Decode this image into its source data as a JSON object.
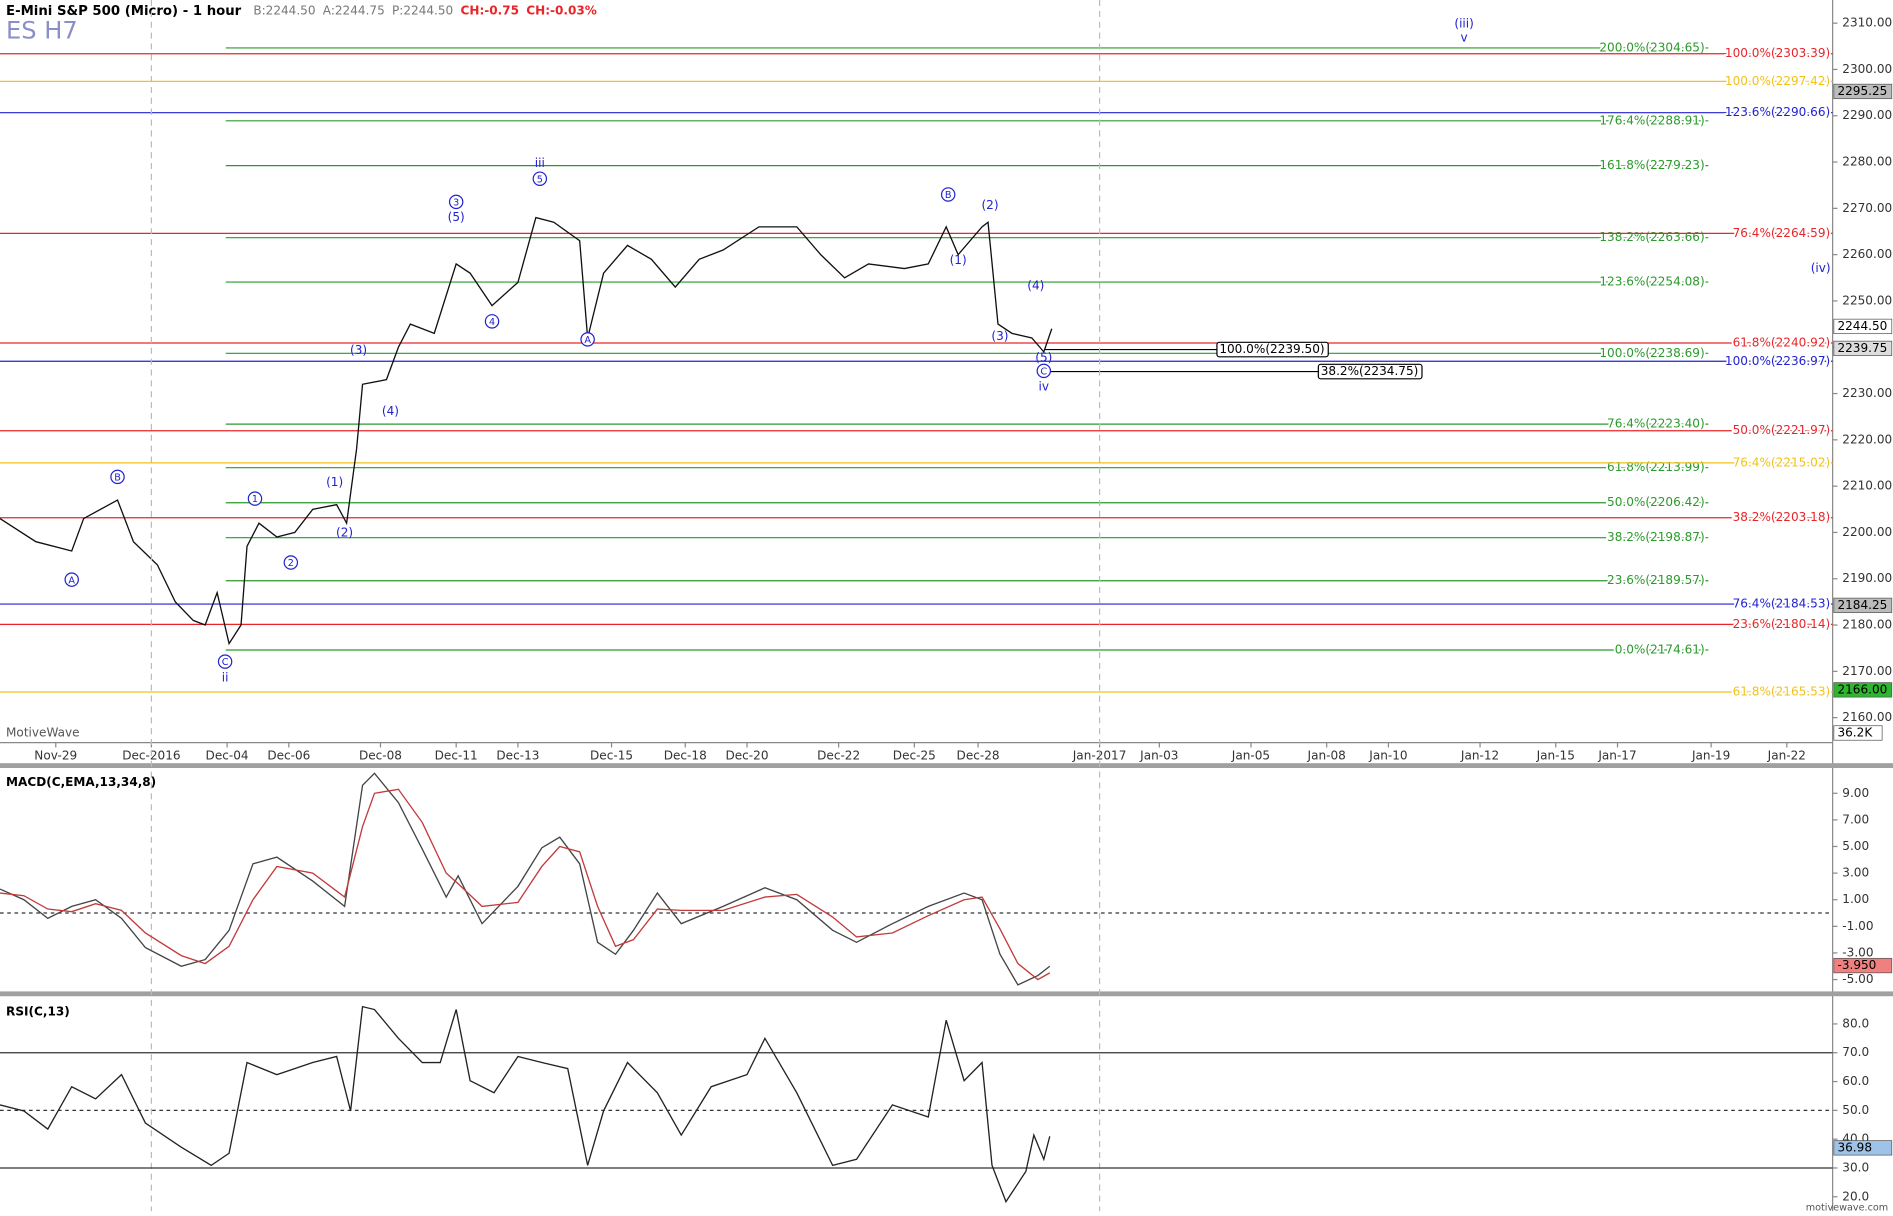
{
  "brand": "MotiveWave",
  "site": "motivewave.com",
  "chart_data": [
    {
      "type": "line",
      "title": "E-Mini S&P 500 (Micro) - 1 hour",
      "watermark": "ES H7",
      "quote": [
        {
          "text": "B:2244.50",
          "color": "#777777"
        },
        {
          "text": "A:2244.75",
          "color": "#777777"
        },
        {
          "text": "P:2244.50",
          "color": "#777777"
        },
        {
          "text": "CH:-0.75",
          "color": "#e8262a"
        },
        {
          "text": "CH:-0.03%",
          "color": "#e8262a"
        }
      ],
      "xlim": [
        0,
        920
      ],
      "ylim": [
        2154.6,
        2315.0
      ],
      "xticks": [
        {
          "value": 28,
          "label": "Nov-29"
        },
        {
          "value": 76,
          "label": "Dec-2016"
        },
        {
          "value": 114,
          "label": "Dec-04"
        },
        {
          "value": 145,
          "label": "Dec-06"
        },
        {
          "value": 191,
          "label": "Dec-08"
        },
        {
          "value": 229,
          "label": "Dec-11"
        },
        {
          "value": 260,
          "label": "Dec-13"
        },
        {
          "value": 307,
          "label": "Dec-15"
        },
        {
          "value": 344,
          "label": "Dec-18"
        },
        {
          "value": 375,
          "label": "Dec-20"
        },
        {
          "value": 421,
          "label": "Dec-22"
        },
        {
          "value": 459,
          "label": "Dec-25"
        },
        {
          "value": 491,
          "label": "Dec-28"
        },
        {
          "value": 552,
          "label": "Jan-2017"
        },
        {
          "value": 582,
          "label": "Jan-03"
        },
        {
          "value": 628,
          "label": "Jan-05"
        },
        {
          "value": 666,
          "label": "Jan-08"
        },
        {
          "value": 697,
          "label": "Jan-10"
        },
        {
          "value": 743,
          "label": "Jan-12"
        },
        {
          "value": 781,
          "label": "Jan-15"
        },
        {
          "value": 812,
          "label": "Jan-17"
        },
        {
          "value": 859,
          "label": "Jan-19"
        },
        {
          "value": 897,
          "label": "Jan-22"
        }
      ],
      "yticks": [
        {
          "value": 2160,
          "label": "2160.00"
        },
        {
          "value": 2170,
          "label": "2170.00"
        },
        {
          "value": 2180,
          "label": "2180.00"
        },
        {
          "value": 2190,
          "label": "2190.00"
        },
        {
          "value": 2200,
          "label": "2200.00"
        },
        {
          "value": 2210,
          "label": "2210.00"
        },
        {
          "value": 2220,
          "label": "2220.00"
        },
        {
          "value": 2230,
          "label": "2230.00"
        },
        {
          "value": 2240,
          "label": "2240.00"
        },
        {
          "value": 2250,
          "label": "2250.00"
        },
        {
          "value": 2260,
          "label": "2260.00"
        },
        {
          "value": 2270,
          "label": "2270.00"
        },
        {
          "value": 2280,
          "label": "2280.00"
        },
        {
          "value": 2290,
          "label": "2290.00"
        },
        {
          "value": 2300,
          "label": "2300.00"
        },
        {
          "value": 2310,
          "label": "2310.00"
        }
      ],
      "x": [
        0,
        18,
        36,
        42,
        59,
        67,
        79,
        88,
        97,
        103,
        109,
        115,
        121,
        124,
        130,
        139,
        148,
        157,
        169,
        174,
        179,
        182,
        194,
        200,
        206,
        218,
        229,
        236,
        247,
        260,
        269,
        278,
        291,
        295,
        303,
        315,
        327,
        339,
        351,
        363,
        381,
        400,
        412,
        424,
        436,
        454,
        466,
        475,
        481,
        493,
        496,
        501,
        508,
        518,
        524,
        528
      ],
      "series": [
        {
          "color": "#111111",
          "values": [
            2203,
            2198,
            2196,
            2203,
            2207,
            2198,
            2193,
            2185,
            2181,
            2180,
            2187,
            2176,
            2180,
            2197,
            2202,
            2199,
            2200,
            2205,
            2206,
            2202,
            2218,
            2232,
            2233,
            2240,
            2245,
            2243,
            2258,
            2256,
            2249,
            2254,
            2268,
            2267,
            2263,
            2242,
            2256,
            2262,
            2259,
            2253,
            2259,
            2261,
            2266,
            2266,
            2260,
            2255,
            2258,
            2257,
            2258,
            2266,
            2260,
            2266,
            2267,
            2245,
            2243,
            2242,
            2239,
            2244
          ]
        }
      ],
      "levels": [
        {
          "value": 2304.65,
          "label": "200.0%(2304.65)",
          "color": "#2b9a2b"
        },
        {
          "value": 2288.91,
          "label": "176.4%(2288.91)",
          "color": "#2b9a2b"
        },
        {
          "value": 2279.23,
          "label": "161.8%(2279.23)",
          "color": "#2b9a2b"
        },
        {
          "value": 2263.66,
          "label": "138.2%(2263.66)",
          "color": "#2b9a2b"
        },
        {
          "value": 2254.08,
          "label": "123.6%(2254.08)",
          "color": "#2b9a2b"
        },
        {
          "value": 2238.69,
          "label": "100.0%(2238.69)",
          "color": "#2b9a2b"
        },
        {
          "value": 2223.4,
          "label": "76.4%(2223.40)",
          "color": "#2b9a2b"
        },
        {
          "value": 2213.99,
          "label": "61.8%(2213.99)",
          "color": "#2b9a2b"
        },
        {
          "value": 2206.42,
          "label": "50.0%(2206.42)",
          "color": "#2b9a2b"
        },
        {
          "value": 2198.87,
          "label": "38.2%(2198.87)",
          "color": "#2b9a2b"
        },
        {
          "value": 2189.57,
          "label": "23.6%(2189.57)",
          "color": "#2b9a2b"
        },
        {
          "value": 2174.61,
          "label": "0.0%(2174.61)",
          "color": "#2b9a2b"
        },
        {
          "value": 2303.39,
          "label": "100.0%(2303.39)",
          "color": "#e8262a"
        },
        {
          "value": 2264.59,
          "label": "76.4%(2264.59)",
          "color": "#e8262a"
        },
        {
          "value": 2240.92,
          "label": "61.8%(2240.92)",
          "color": "#e8262a"
        },
        {
          "value": 2221.97,
          "label": "50.0%(2221.97)",
          "color": "#e8262a"
        },
        {
          "value": 2203.18,
          "label": "38.2%(2203.18)",
          "color": "#e8262a"
        },
        {
          "value": 2180.14,
          "label": "23.6%(2180.14)",
          "color": "#e8262a"
        },
        {
          "value": 2297.42,
          "label": "100.0%(2297.42)",
          "color": "#f2c21a"
        },
        {
          "value": 2215.02,
          "label": "76.4%(2215.02)",
          "color": "#f2c21a"
        },
        {
          "value": 2165.53,
          "label": "61.8%(2165.53)",
          "color": "#f2c21a"
        },
        {
          "value": 2290.66,
          "label": "123.6%(2290.66)",
          "color": "#2222d0"
        },
        {
          "value": 2236.97,
          "label": "100.0%(2236.97)",
          "color": "#2222d0"
        },
        {
          "value": 2184.53,
          "label": "76.4%(2184.53)",
          "color": "#2222d0"
        }
      ],
      "boxed_levels": [
        {
          "value": 2239.5,
          "label": "100.0%(2239.50)"
        },
        {
          "value": 2234.75,
          "label": "38.2%(2234.75)"
        }
      ],
      "annotations": [
        {
          "text": "A",
          "x": 36,
          "y": 2189.8,
          "circle": true
        },
        {
          "text": "B",
          "x": 59,
          "y": 2212.0,
          "circle": true
        },
        {
          "text": "C",
          "x": 113,
          "y": 2172.1,
          "circle": true
        },
        {
          "text": "ii",
          "x": 113,
          "y": 2168.7,
          "circle": false
        },
        {
          "text": "1",
          "x": 128,
          "y": 2207.3,
          "circle": true
        },
        {
          "text": "2",
          "x": 146,
          "y": 2193.5,
          "circle": true
        },
        {
          "text": "(1)",
          "x": 168,
          "y": 2210.9,
          "circle": false
        },
        {
          "text": "(2)",
          "x": 173,
          "y": 2200.0,
          "circle": false
        },
        {
          "text": "(3)",
          "x": 180,
          "y": 2239.4,
          "circle": false
        },
        {
          "text": "(4)",
          "x": 196,
          "y": 2226.3,
          "circle": false
        },
        {
          "text": "3",
          "x": 229,
          "y": 2271.4,
          "circle": true
        },
        {
          "text": "(5)",
          "x": 229,
          "y": 2268.1,
          "circle": false
        },
        {
          "text": "4",
          "x": 247,
          "y": 2245.6,
          "circle": true
        },
        {
          "text": "iii",
          "x": 271,
          "y": 2279.8,
          "circle": false
        },
        {
          "text": "5",
          "x": 271,
          "y": 2276.4,
          "circle": true
        },
        {
          "text": "A",
          "x": 295,
          "y": 2241.7,
          "circle": true
        },
        {
          "text": "B",
          "x": 476,
          "y": 2273.0,
          "circle": true
        },
        {
          "text": "(2)",
          "x": 497,
          "y": 2270.7,
          "circle": false
        },
        {
          "text": "(1)",
          "x": 481,
          "y": 2258.9,
          "circle": false
        },
        {
          "text": "(4)",
          "x": 520,
          "y": 2253.4,
          "circle": false
        },
        {
          "text": "(3)",
          "x": 502,
          "y": 2242.5,
          "circle": false
        },
        {
          "text": "(5)",
          "x": 524,
          "y": 2237.8,
          "circle": false
        },
        {
          "text": "C",
          "x": 524,
          "y": 2234.9,
          "circle": true
        },
        {
          "text": "iv",
          "x": 524,
          "y": 2231.5,
          "circle": false
        },
        {
          "text": "(iii)",
          "x": 735,
          "y": 2310.0,
          "circle": false
        },
        {
          "text": "v",
          "x": 735,
          "y": 2306.9,
          "circle": false
        },
        {
          "text": "(iv)",
          "x": 914,
          "y": 2257.1,
          "circle": false
        }
      ],
      "markers": [
        {
          "value": 2295.25,
          "label": "2295.25",
          "color": "#bbbbbb"
        },
        {
          "value": 2244.5,
          "label": "2244.50",
          "color": "#ffffff"
        },
        {
          "value": 2239.75,
          "label": "2239.75",
          "color": "#dddddd"
        },
        {
          "value": 2184.25,
          "label": "2184.25",
          "color": "#bbbbbb"
        },
        {
          "value": 2166.0,
          "label": "2166.00",
          "color": "#2fb52f"
        }
      ],
      "volume_label": "36.2K"
    },
    {
      "type": "line",
      "title": "MACD(C,EMA,13,34,8)",
      "xlim": [
        0,
        920
      ],
      "ylim": [
        -5.8,
        10.9
      ],
      "yticks": [
        {
          "value": 9,
          "label": "9.00"
        },
        {
          "value": 7,
          "label": "7.00"
        },
        {
          "value": 5,
          "label": "5.00"
        },
        {
          "value": 3,
          "label": "3.00"
        },
        {
          "value": 1,
          "label": "1.00"
        },
        {
          "value": -1,
          "label": "-1.00"
        },
        {
          "value": -3,
          "label": "-3.00"
        },
        {
          "value": -5,
          "label": "-5.00"
        }
      ],
      "guides": [
        {
          "value": 0,
          "dashed": true
        }
      ],
      "x": [
        0,
        12,
        24,
        36,
        48,
        61,
        73,
        91,
        103,
        115,
        127,
        139,
        157,
        173,
        182,
        188,
        200,
        212,
        224,
        230,
        242,
        260,
        272,
        281,
        291,
        300,
        309,
        318,
        330,
        342,
        363,
        384,
        400,
        418,
        430,
        448,
        466,
        484,
        493,
        502,
        511,
        521,
        527
      ],
      "series": [
        {
          "color": "#444444",
          "values": [
            1.8,
            1,
            -0.4,
            0.5,
            1,
            -0.4,
            -2.6,
            -4,
            -3.5,
            -1.3,
            3.7,
            4.2,
            2.4,
            0.5,
            9.6,
            10.5,
            8.3,
            4.8,
            1.2,
            2.8,
            -0.8,
            2,
            4.9,
            5.7,
            3.7,
            -2.2,
            -3.1,
            -1.3,
            1.5,
            -0.8,
            0.5,
            1.9,
            1,
            -1.3,
            -2.2,
            -0.8,
            0.5,
            1.5,
            1,
            -3.1,
            -5.4,
            -4.7,
            -4.0
          ]
        },
        {
          "color": "#c23a3a",
          "values": [
            1.5,
            1.3,
            0.3,
            0.1,
            0.7,
            0.2,
            -1.5,
            -3.2,
            -3.8,
            -2.5,
            1.0,
            3.5,
            3.0,
            1.2,
            6.5,
            9.0,
            9.3,
            6.8,
            3.0,
            2.2,
            0.5,
            0.8,
            3.5,
            5.0,
            4.6,
            0.5,
            -2.5,
            -2.0,
            0.3,
            0.2,
            0.2,
            1.2,
            1.4,
            -0.3,
            -1.8,
            -1.5,
            -0.2,
            1.0,
            1.2,
            -1.2,
            -3.8,
            -5.0,
            -4.5
          ]
        }
      ],
      "markers": [
        {
          "value": -3.95,
          "label": "-3.950",
          "color": "#f08080"
        }
      ]
    },
    {
      "type": "line",
      "title": "RSI(C,13)",
      "xlim": [
        0,
        920
      ],
      "ylim": [
        15,
        89.2
      ],
      "yticks": [
        {
          "value": 80,
          "label": "80.0"
        },
        {
          "value": 70,
          "label": "70.0"
        },
        {
          "value": 60,
          "label": "60.0"
        },
        {
          "value": 50,
          "label": "50.0"
        },
        {
          "value": 40,
          "label": "40.0"
        },
        {
          "value": 30,
          "label": "30.0"
        },
        {
          "value": 20,
          "label": "20.0"
        }
      ],
      "guides": [
        {
          "value": 70,
          "dashed": false
        },
        {
          "value": 50,
          "dashed": true
        },
        {
          "value": 30,
          "dashed": false
        }
      ],
      "x": [
        0,
        12,
        24,
        36,
        48,
        61,
        73,
        91,
        106,
        115,
        124,
        139,
        157,
        169,
        176,
        182,
        188,
        200,
        212,
        221,
        229,
        236,
        248,
        260,
        272,
        285,
        295,
        303,
        315,
        330,
        342,
        357,
        375,
        384,
        400,
        418,
        430,
        448,
        466,
        475,
        484,
        493,
        498,
        505,
        515,
        519,
        524,
        527
      ],
      "series": [
        {
          "color": "#222222",
          "values": [
            51.9,
            49.8,
            43.5,
            58.2,
            54,
            62.4,
            45.6,
            37.2,
            30.9,
            35.1,
            66.6,
            62.4,
            66.6,
            68.7,
            49.8,
            86,
            85,
            75,
            66.6,
            66.6,
            85,
            60.3,
            56.1,
            68.7,
            66.6,
            64.5,
            30.9,
            49.8,
            66.6,
            56.1,
            41.4,
            58.2,
            62.4,
            75,
            56.1,
            30.9,
            33,
            51.9,
            47.7,
            81.3,
            60.3,
            66.6,
            30.9,
            18.3,
            28.8,
            41.4,
            33,
            41
          ]
        }
      ],
      "markers": [
        {
          "value": 36.98,
          "label": "36.98",
          "color": "#9fc3e8"
        }
      ]
    }
  ]
}
